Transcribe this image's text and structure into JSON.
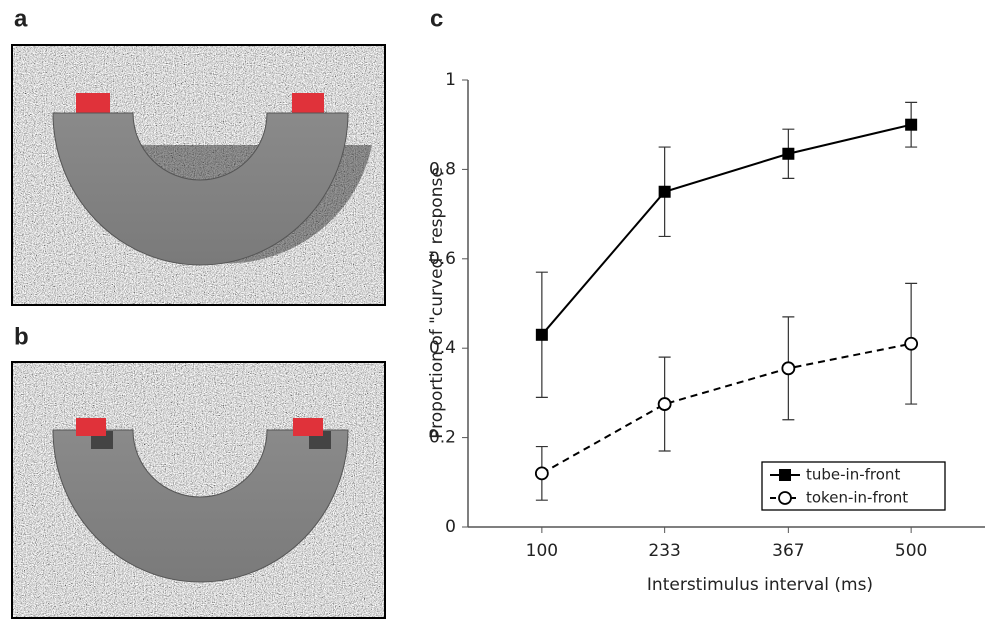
{
  "panels": [
    "a",
    "b",
    "c"
  ],
  "chart_data": {
    "type": "line",
    "x_label": "Interstimulus interval (ms)",
    "y_label": "Proportion of \"curved\" response",
    "x": [
      100,
      233,
      367,
      500
    ],
    "series": [
      {
        "name": "tube-in-front",
        "color": "#000000",
        "marker": "square",
        "dash": false,
        "values": [
          0.43,
          0.75,
          0.835,
          0.9
        ],
        "errors": [
          0.14,
          0.1,
          0.055,
          0.05
        ]
      },
      {
        "name": "token-in-front",
        "color": "#000000",
        "marker": "open-circle",
        "dash": true,
        "values": [
          0.12,
          0.275,
          0.355,
          0.41
        ],
        "errors": [
          0.06,
          0.105,
          0.115,
          0.135
        ]
      }
    ],
    "xlim": [
      20,
      580
    ],
    "xticks": [
      100,
      233,
      367,
      500
    ],
    "ylim": [
      0,
      1
    ],
    "yticks": [
      0,
      0.2,
      0.4,
      0.6,
      0.8,
      1
    ],
    "legend": "lower right"
  }
}
